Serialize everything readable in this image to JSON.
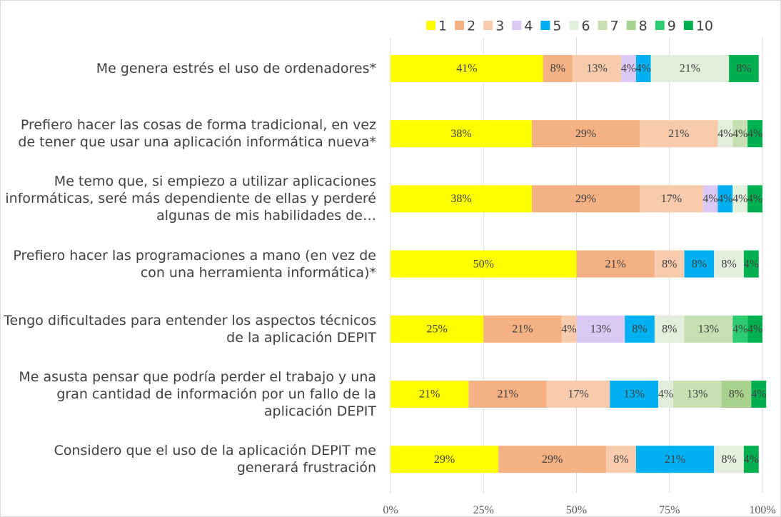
{
  "chart_data": {
    "type": "stacked_barh",
    "categories": [
      "Me genera estrés el uso de ordenadores*",
      "Prefiero hacer las cosas de forma tradicional, en vez de tener que usar una aplicación informática nueva*",
      "Me temo que, si empiezo a utilizar aplicaciones informáticas, seré más dependiente de ellas y perderé algunas de mis habilidades de…",
      "Prefiero hacer las programaciones a mano (en vez de con una herramienta informática)*",
      "Tengo dificultades para entender los aspectos técnicos de la aplicación DEPIT",
      "Me asusta pensar que podría perder el trabajo y una gran cantidad de información por un fallo de la aplicación DEPIT",
      "Considero que el uso de la aplicación DEPIT me generará frustración"
    ],
    "series": [
      {
        "name": "1",
        "color": "#ffff00",
        "values": [
          41,
          38,
          38,
          50,
          25,
          21,
          29
        ],
        "value_labels": [
          "41%",
          "38%",
          "38%",
          "50%",
          "25%",
          "21%",
          "29%"
        ]
      },
      {
        "name": "2",
        "color": "#f4b183",
        "values": [
          8,
          29,
          29,
          21,
          21,
          21,
          29
        ],
        "value_labels": [
          "8%",
          "29%",
          "29%",
          "21%",
          "21%",
          "21%",
          "29%"
        ]
      },
      {
        "name": "3",
        "color": "#f8cbad",
        "values": [
          13,
          21,
          17,
          8,
          4,
          17,
          8
        ],
        "value_labels": [
          "13%",
          "21%",
          "17%",
          "8%",
          "4%",
          "17%",
          "8%"
        ]
      },
      {
        "name": "4",
        "color": "#dcc8f4",
        "values": [
          4,
          null,
          4,
          null,
          13,
          null,
          null
        ],
        "value_labels": [
          "4%",
          null,
          "4%",
          null,
          "13%",
          null,
          null
        ]
      },
      {
        "name": "5",
        "color": "#00b0f0",
        "values": [
          4,
          null,
          4,
          8,
          8,
          13,
          21
        ],
        "value_labels": [
          "4%",
          null,
          "4%",
          "8%",
          "8%",
          "13%",
          "21%"
        ]
      },
      {
        "name": "6",
        "color": "#e2efda",
        "values": [
          21,
          4,
          4,
          8,
          8,
          4,
          8
        ],
        "value_labels": [
          "21%",
          "4%",
          "4%",
          "8%",
          "8%",
          "4%",
          "8%"
        ]
      },
      {
        "name": "7",
        "color": "#c6e0b4",
        "values": [
          null,
          4,
          null,
          null,
          13,
          13,
          null
        ],
        "value_labels": [
          null,
          "4%",
          null,
          null,
          "13%",
          "13%",
          null
        ]
      },
      {
        "name": "8",
        "color": "#a9d18e",
        "values": [
          null,
          null,
          null,
          null,
          null,
          8,
          null
        ],
        "value_labels": [
          null,
          null,
          null,
          null,
          null,
          "8%",
          null
        ]
      },
      {
        "name": "9",
        "color": "#2ecc71",
        "values": [
          null,
          null,
          null,
          null,
          4,
          null,
          null
        ],
        "value_labels": [
          null,
          null,
          null,
          null,
          "4%",
          null,
          null
        ]
      },
      {
        "name": "10",
        "color": "#00b050",
        "values": [
          8,
          4,
          4,
          4,
          4,
          4,
          4
        ],
        "value_labels": [
          "8%",
          "4%",
          "4%",
          "4%",
          "4%",
          "4%",
          "4%"
        ]
      }
    ],
    "xlim": [
      0,
      100
    ],
    "xticks": [
      {
        "value": 0,
        "label": "0%"
      },
      {
        "value": 25,
        "label": "25%"
      },
      {
        "value": 50,
        "label": "50%"
      },
      {
        "value": 75,
        "label": "75%"
      },
      {
        "value": 100,
        "label": "100%"
      }
    ],
    "grid": true,
    "legend": "top"
  }
}
